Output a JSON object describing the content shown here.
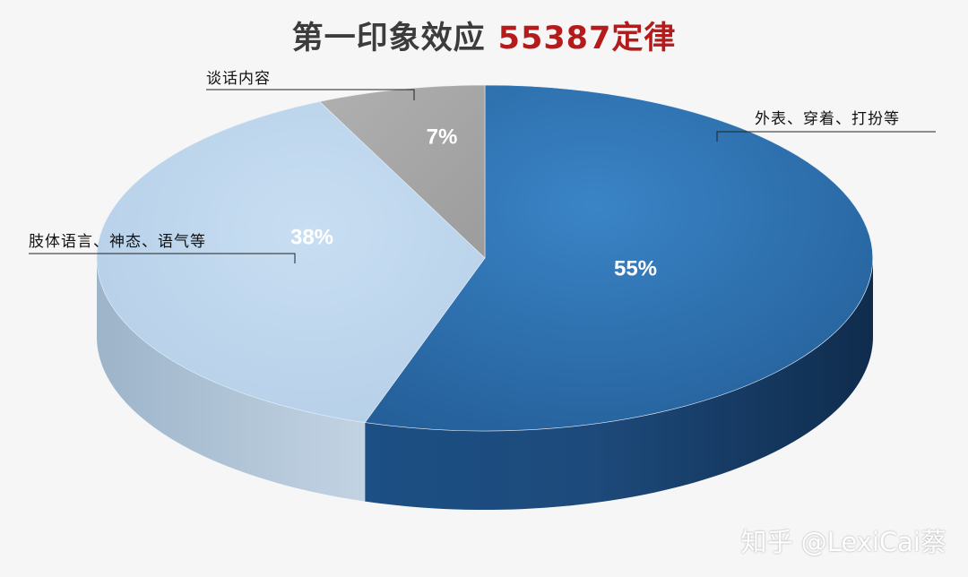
{
  "title": {
    "main": "第一印象效应",
    "highlight": "55387定律"
  },
  "watermark": "知乎 @LexiCai蔡",
  "colors": {
    "title": "#3c3c3c",
    "highlight": "#b51b1b",
    "background": "#f6f6f6"
  },
  "chart_data": {
    "type": "pie",
    "three_d": true,
    "series": [
      {
        "category": "外表、穿着、打扮等",
        "value": 55,
        "label": "55%",
        "color": "#2e75b6"
      },
      {
        "category": "肢体语言、神态、语气等",
        "value": 38,
        "label": "38%",
        "color": "#bdd7ee"
      },
      {
        "category": "谈话内容",
        "value": 7,
        "label": "7%",
        "color": "#a5a5a5"
      }
    ]
  }
}
